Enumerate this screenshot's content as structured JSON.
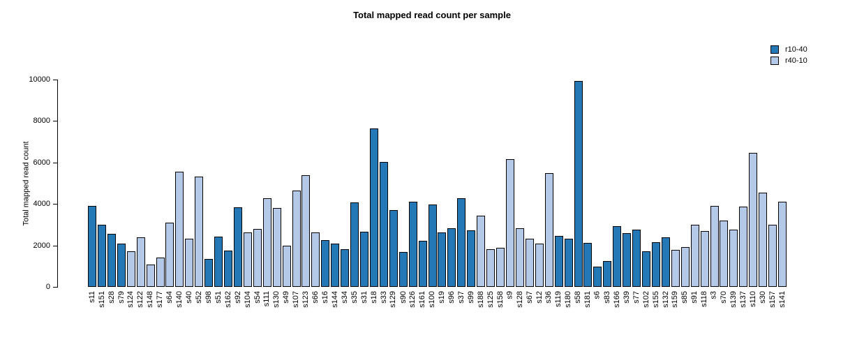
{
  "chart_data": {
    "type": "bar",
    "title": "Total mapped read count per sample",
    "xlabel": "",
    "ylabel": "Total mapped read count",
    "ylim": [
      0,
      10000
    ],
    "yticks": [
      0,
      2000,
      4000,
      6000,
      8000,
      10000
    ],
    "grid": false,
    "legend_position": "top-right",
    "series": [
      {
        "name": "r10-40",
        "color": "#2478b5"
      },
      {
        "name": "r40-10",
        "color": "#b4c9e7"
      }
    ],
    "samples": [
      {
        "label": "s11",
        "value": 3900,
        "series": "r10-40"
      },
      {
        "label": "s151",
        "value": 2980,
        "series": "r10-40"
      },
      {
        "label": "s28",
        "value": 2550,
        "series": "r10-40"
      },
      {
        "label": "s79",
        "value": 2100,
        "series": "r10-40"
      },
      {
        "label": "s124",
        "value": 1720,
        "series": "r40-10"
      },
      {
        "label": "s122",
        "value": 2400,
        "series": "r40-10"
      },
      {
        "label": "s148",
        "value": 1080,
        "series": "r40-10"
      },
      {
        "label": "s177",
        "value": 1400,
        "series": "r40-10"
      },
      {
        "label": "s64",
        "value": 3100,
        "series": "r40-10"
      },
      {
        "label": "s140",
        "value": 5550,
        "series": "r40-10"
      },
      {
        "label": "s40",
        "value": 2330,
        "series": "r40-10"
      },
      {
        "label": "s52",
        "value": 5320,
        "series": "r40-10"
      },
      {
        "label": "s98",
        "value": 1350,
        "series": "r10-40"
      },
      {
        "label": "s51",
        "value": 2420,
        "series": "r10-40"
      },
      {
        "label": "s162",
        "value": 1750,
        "series": "r10-40"
      },
      {
        "label": "s92",
        "value": 3850,
        "series": "r10-40"
      },
      {
        "label": "s104",
        "value": 2630,
        "series": "r40-10"
      },
      {
        "label": "s54",
        "value": 2780,
        "series": "r40-10"
      },
      {
        "label": "s111",
        "value": 4280,
        "series": "r40-10"
      },
      {
        "label": "s130",
        "value": 3820,
        "series": "r40-10"
      },
      {
        "label": "s49",
        "value": 2000,
        "series": "r40-10"
      },
      {
        "label": "s107",
        "value": 4650,
        "series": "r40-10"
      },
      {
        "label": "s123",
        "value": 5400,
        "series": "r40-10"
      },
      {
        "label": "s66",
        "value": 2630,
        "series": "r40-10"
      },
      {
        "label": "s16",
        "value": 2250,
        "series": "r10-40"
      },
      {
        "label": "s144",
        "value": 2100,
        "series": "r10-40"
      },
      {
        "label": "s34",
        "value": 1820,
        "series": "r10-40"
      },
      {
        "label": "s35",
        "value": 4080,
        "series": "r10-40"
      },
      {
        "label": "s31",
        "value": 2650,
        "series": "r10-40"
      },
      {
        "label": "s18",
        "value": 7650,
        "series": "r10-40"
      },
      {
        "label": "s33",
        "value": 6020,
        "series": "r10-40"
      },
      {
        "label": "s129",
        "value": 3700,
        "series": "r10-40"
      },
      {
        "label": "s90",
        "value": 1680,
        "series": "r10-40"
      },
      {
        "label": "s126",
        "value": 4120,
        "series": "r10-40"
      },
      {
        "label": "s161",
        "value": 2230,
        "series": "r10-40"
      },
      {
        "label": "s100",
        "value": 3970,
        "series": "r10-40"
      },
      {
        "label": "s19",
        "value": 2620,
        "series": "r10-40"
      },
      {
        "label": "s96",
        "value": 2820,
        "series": "r10-40"
      },
      {
        "label": "s37",
        "value": 4270,
        "series": "r10-40"
      },
      {
        "label": "s99",
        "value": 2740,
        "series": "r10-40"
      },
      {
        "label": "s188",
        "value": 3440,
        "series": "r40-10"
      },
      {
        "label": "s125",
        "value": 1820,
        "series": "r40-10"
      },
      {
        "label": "s158",
        "value": 1900,
        "series": "r40-10"
      },
      {
        "label": "s9",
        "value": 6150,
        "series": "r40-10"
      },
      {
        "label": "s128",
        "value": 2820,
        "series": "r40-10"
      },
      {
        "label": "s67",
        "value": 2340,
        "series": "r40-10"
      },
      {
        "label": "s12",
        "value": 2080,
        "series": "r40-10"
      },
      {
        "label": "s36",
        "value": 5480,
        "series": "r40-10"
      },
      {
        "label": "s119",
        "value": 2450,
        "series": "r10-40"
      },
      {
        "label": "s180",
        "value": 2320,
        "series": "r10-40"
      },
      {
        "label": "s58",
        "value": 9930,
        "series": "r10-40"
      },
      {
        "label": "s181",
        "value": 2120,
        "series": "r10-40"
      },
      {
        "label": "s6",
        "value": 980,
        "series": "r10-40"
      },
      {
        "label": "s83",
        "value": 1230,
        "series": "r10-40"
      },
      {
        "label": "s166",
        "value": 2940,
        "series": "r10-40"
      },
      {
        "label": "s39",
        "value": 2590,
        "series": "r10-40"
      },
      {
        "label": "s77",
        "value": 2750,
        "series": "r10-40"
      },
      {
        "label": "s102",
        "value": 1730,
        "series": "r10-40"
      },
      {
        "label": "s155",
        "value": 2150,
        "series": "r10-40"
      },
      {
        "label": "s132",
        "value": 2380,
        "series": "r10-40"
      },
      {
        "label": "s159",
        "value": 1800,
        "series": "r40-10"
      },
      {
        "label": "s85",
        "value": 1910,
        "series": "r40-10"
      },
      {
        "label": "s91",
        "value": 3010,
        "series": "r40-10"
      },
      {
        "label": "s118",
        "value": 2680,
        "series": "r40-10"
      },
      {
        "label": "s3",
        "value": 3920,
        "series": "r40-10"
      },
      {
        "label": "s70",
        "value": 3210,
        "series": "r40-10"
      },
      {
        "label": "s139",
        "value": 2770,
        "series": "r40-10"
      },
      {
        "label": "s137",
        "value": 3880,
        "series": "r40-10"
      },
      {
        "label": "s110",
        "value": 6480,
        "series": "r40-10"
      },
      {
        "label": "s30",
        "value": 4560,
        "series": "r40-10"
      },
      {
        "label": "s157",
        "value": 3010,
        "series": "r40-10"
      },
      {
        "label": "s141",
        "value": 4120,
        "series": "r40-10"
      }
    ]
  }
}
